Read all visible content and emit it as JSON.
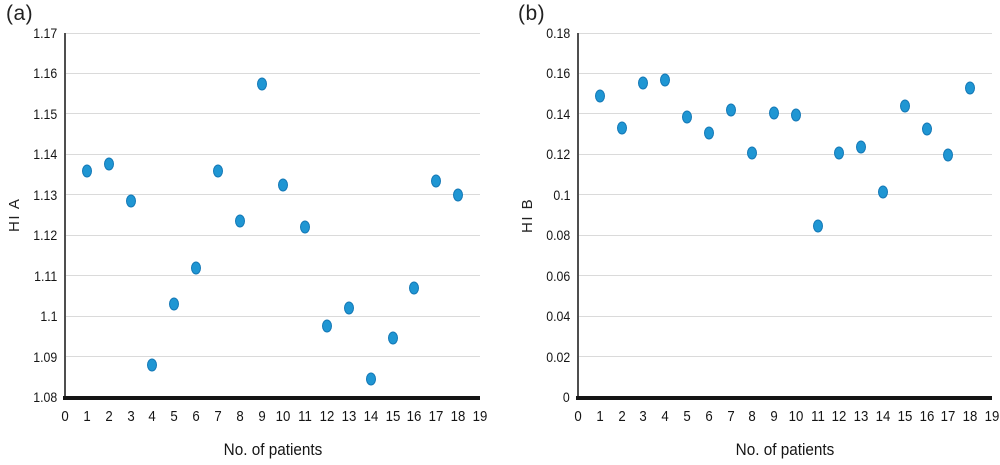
{
  "figure": {
    "panels": [
      {
        "tag": "(a)"
      },
      {
        "tag": "(b)"
      }
    ]
  },
  "chart_data": [
    {
      "type": "scatter",
      "panel_tag": "(a)",
      "title": "",
      "xlabel": "No. of patients",
      "ylabel": "HI A",
      "x": [
        1,
        2,
        3,
        4,
        5,
        6,
        7,
        8,
        9,
        10,
        11,
        12,
        13,
        14,
        15,
        16,
        17,
        18
      ],
      "y": [
        1.136,
        1.1375,
        1.1285,
        1.088,
        1.103,
        1.112,
        1.136,
        1.1235,
        1.1575,
        1.1325,
        1.122,
        1.0975,
        1.102,
        1.0845,
        1.0945,
        1.107,
        1.1335,
        1.13
      ],
      "xlim": [
        0,
        19
      ],
      "ylim": [
        1.08,
        1.17
      ],
      "xtick_values": [
        0,
        1,
        2,
        3,
        4,
        5,
        6,
        7,
        8,
        9,
        10,
        11,
        12,
        13,
        14,
        15,
        16,
        17,
        18,
        19
      ],
      "xtick_labels": [
        "0",
        "1",
        "2",
        "3",
        "4",
        "5",
        "6",
        "7",
        "8",
        "9",
        "10",
        "11",
        "12",
        "13",
        "14",
        "15",
        "16",
        "17",
        "18",
        "19"
      ],
      "ytick_values": [
        1.08,
        1.09,
        1.1,
        1.11,
        1.12,
        1.13,
        1.14,
        1.15,
        1.16,
        1.17
      ],
      "ytick_labels": [
        "1.08",
        "1.09",
        "1.1",
        "1.11",
        "1.12",
        "1.13",
        "1.14",
        "1.15",
        "1.16",
        "1.17"
      ],
      "grid": true,
      "legend": null,
      "marker": {
        "color": "#1f96d3",
        "border": "#1478b6"
      }
    },
    {
      "type": "scatter",
      "panel_tag": "(b)",
      "title": "",
      "xlabel": "No. of patients",
      "ylabel": "HI B",
      "x": [
        1,
        2,
        3,
        4,
        5,
        6,
        7,
        8,
        9,
        10,
        11,
        12,
        13,
        14,
        15,
        16,
        17,
        18
      ],
      "y": [
        0.149,
        0.133,
        0.1555,
        0.157,
        0.1385,
        0.1305,
        0.142,
        0.1205,
        0.1405,
        0.1395,
        0.0845,
        0.1205,
        0.1235,
        0.1015,
        0.144,
        0.1325,
        0.1195,
        0.153
      ],
      "xlim": [
        0,
        19
      ],
      "ylim": [
        0,
        0.18
      ],
      "xtick_values": [
        0,
        1,
        2,
        3,
        4,
        5,
        6,
        7,
        8,
        9,
        10,
        11,
        12,
        13,
        14,
        15,
        16,
        17,
        18,
        19
      ],
      "xtick_labels": [
        "0",
        "1",
        "2",
        "3",
        "4",
        "5",
        "6",
        "7",
        "8",
        "9",
        "10",
        "11",
        "12",
        "13",
        "14",
        "15",
        "16",
        "17",
        "18",
        "19"
      ],
      "ytick_values": [
        0,
        0.02,
        0.04,
        0.06,
        0.08,
        0.1,
        0.12,
        0.14,
        0.16,
        0.18
      ],
      "ytick_labels": [
        "0",
        "0.02",
        "0.04",
        "0.06",
        "0.08",
        "0.1",
        "0.12",
        "0.14",
        "0.16",
        "0.18"
      ],
      "grid": true,
      "legend": null,
      "marker": {
        "color": "#1f96d3",
        "border": "#1478b6"
      }
    }
  ]
}
